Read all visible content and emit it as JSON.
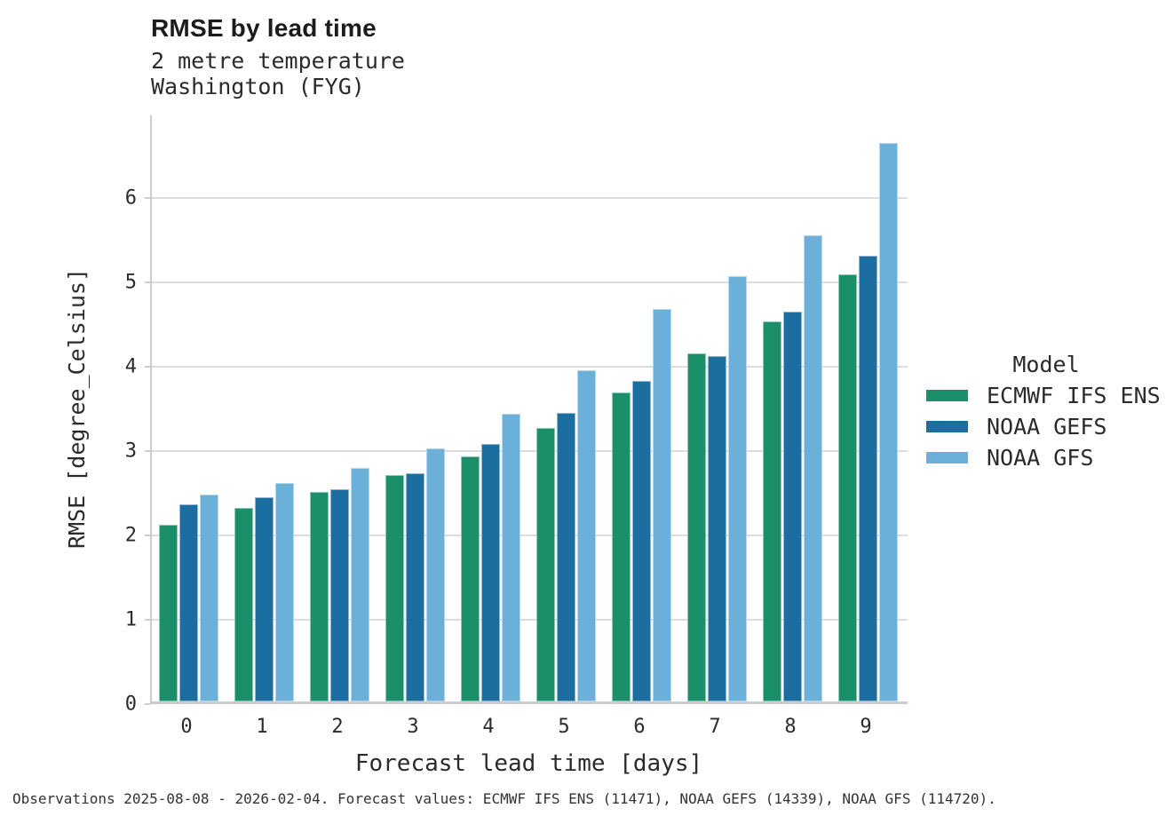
{
  "header": {
    "title": "RMSE by lead time",
    "subtitle_line1": "2 metre temperature",
    "subtitle_line2": "Washington (FYG)"
  },
  "chart_data": {
    "type": "bar",
    "title": "RMSE by lead time",
    "subtitle": "2 metre temperature Washington (FYG)",
    "xlabel": "Forecast lead time [days]",
    "ylabel": "RMSE [degree_Celsius]",
    "categories": [
      "0",
      "1",
      "2",
      "3",
      "4",
      "5",
      "6",
      "7",
      "8",
      "9"
    ],
    "series": [
      {
        "name": "ECMWF IFS ENS",
        "color": "#1b8e6a",
        "values": [
          2.09,
          2.29,
          2.48,
          2.68,
          2.9,
          3.24,
          3.66,
          4.13,
          4.51,
          5.06
        ]
      },
      {
        "name": "NOAA GEFS",
        "color": "#1d6ea0",
        "values": [
          2.34,
          2.42,
          2.52,
          2.71,
          3.05,
          3.42,
          3.8,
          4.1,
          4.62,
          5.28
        ]
      },
      {
        "name": "NOAA GFS",
        "color": "#6ab0d8",
        "values": [
          2.45,
          2.59,
          2.77,
          3.0,
          3.41,
          3.93,
          4.65,
          5.04,
          5.53,
          6.62
        ]
      }
    ],
    "yticks": [
      0,
      1,
      2,
      3,
      4,
      5,
      6
    ],
    "ylim": [
      0,
      6.98
    ],
    "grid": "horizontal",
    "legend_title": "Model",
    "legend_position": "right"
  },
  "legend": {
    "title": "Model"
  },
  "footnote": "Observations 2025-08-08 - 2026-02-04. Forecast values: ECMWF IFS ENS (11471), NOAA GEFS (14339), NOAA GFS (114720)."
}
